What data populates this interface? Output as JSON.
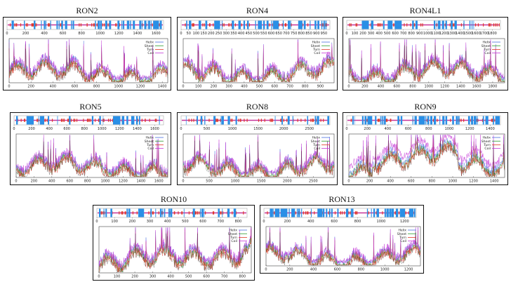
{
  "colors": {
    "helix": "#4a6fe0",
    "sheet": "#2a9a2a",
    "turn": "#e03a2a",
    "coil": "#c63ad8",
    "track_helix": "#2a8fe6",
    "track_coil": "#c6339a",
    "track_sheet": "#e03a2a"
  },
  "chart_data": [
    {
      "type": "line",
      "title": "RON2",
      "legend": [
        "Helix",
        "Sheet",
        "Turn",
        "Coil"
      ],
      "track_ticks": [
        "0",
        "200",
        "400",
        "600",
        "800",
        "1000",
        "1200",
        "1400",
        "1600"
      ],
      "plot_ticks": [
        "0",
        "200",
        "400",
        "600",
        "800",
        "1000",
        "1200",
        "1400"
      ],
      "xlim": [
        0,
        1450
      ],
      "seq_len": 1680
    },
    {
      "type": "line",
      "title": "RON4",
      "legend": [
        "Helix",
        "Sheet",
        "Turn",
        "Coil"
      ],
      "track_ticks": [
        "0",
        "50",
        "100",
        "150",
        "200",
        "250",
        "300",
        "350",
        "400",
        "450",
        "500",
        "550",
        "600",
        "650",
        "700",
        "750",
        "800",
        "850",
        "900",
        "950"
      ],
      "plot_ticks": [
        "0",
        "100",
        "200",
        "300",
        "400",
        "500",
        "600",
        "700",
        "800",
        "900"
      ],
      "xlim": [
        0,
        990
      ],
      "seq_len": 990
    },
    {
      "type": "line",
      "title": "RON4L1",
      "legend": [
        "Helix",
        "Sheet",
        "Turn",
        "Coil"
      ],
      "track_ticks": [
        "0",
        "100",
        "200",
        "300",
        "400",
        "500",
        "600",
        "700",
        "800",
        "900",
        "1000",
        "1100",
        "1200",
        "1300",
        "1400",
        "1500",
        "1600",
        "1700",
        "1800"
      ],
      "plot_ticks": [
        "0",
        "200",
        "400",
        "600",
        "800",
        "1000",
        "1200",
        "1400",
        "1600",
        "1800"
      ],
      "xlim": [
        0,
        1950
      ],
      "seq_len": 1900
    },
    {
      "type": "line",
      "title": "RON5",
      "legend": [
        "Helix",
        "Sheet",
        "Turn",
        "Coil"
      ],
      "track_ticks": [
        "0",
        "200",
        "400",
        "600",
        "800",
        "1000",
        "1200",
        "1400",
        "1600"
      ],
      "plot_ticks": [
        "0",
        "200",
        "400",
        "600",
        "800",
        "1000",
        "1200",
        "1400",
        "1600"
      ],
      "xlim": [
        0,
        1700
      ],
      "seq_len": 1700
    },
    {
      "type": "line",
      "title": "RON8",
      "legend": [
        "Helix",
        "Sheet",
        "Turn",
        "Coil"
      ],
      "track_ticks": [
        "0",
        "500",
        "1000",
        "1500",
        "2000",
        "2500"
      ],
      "plot_ticks": [
        "0",
        "500",
        "1000",
        "1500",
        "2000",
        "2500"
      ],
      "xlim": [
        0,
        2900
      ],
      "seq_len": 2900
    },
    {
      "type": "line",
      "title": "RON9",
      "legend": [
        "Helix",
        "Sheet",
        "Turn",
        "Coil"
      ],
      "track_ticks": [
        "0",
        "200",
        "400",
        "600",
        "800",
        "1000",
        "1200",
        "1400"
      ],
      "plot_ticks": [
        "0",
        "200",
        "400",
        "600",
        "800",
        "1000",
        "1200",
        "1400"
      ],
      "xlim": [
        0,
        1500
      ],
      "seq_len": 1500
    },
    {
      "type": "line",
      "title": "RON10",
      "legend": [
        "Helix",
        "Sheet",
        "Turn",
        "Coil"
      ],
      "track_ticks": [
        "0",
        "100",
        "200",
        "300",
        "400",
        "500",
        "600",
        "700",
        "800"
      ],
      "plot_ticks": [
        "0",
        "100",
        "200",
        "300",
        "400",
        "500",
        "600",
        "700",
        "800"
      ],
      "xlim": [
        0,
        850
      ],
      "seq_len": 850
    },
    {
      "type": "line",
      "title": "RON13",
      "legend": [
        "Helix",
        "Sheet",
        "Turn",
        "Coil"
      ],
      "track_ticks": [
        "0",
        "200",
        "400",
        "600",
        "800",
        "1000",
        "1200"
      ],
      "plot_ticks": [
        "0",
        "200",
        "400",
        "600",
        "800",
        "1000",
        "1200"
      ],
      "xlim": [
        0,
        1300
      ],
      "seq_len": 1300
    }
  ]
}
